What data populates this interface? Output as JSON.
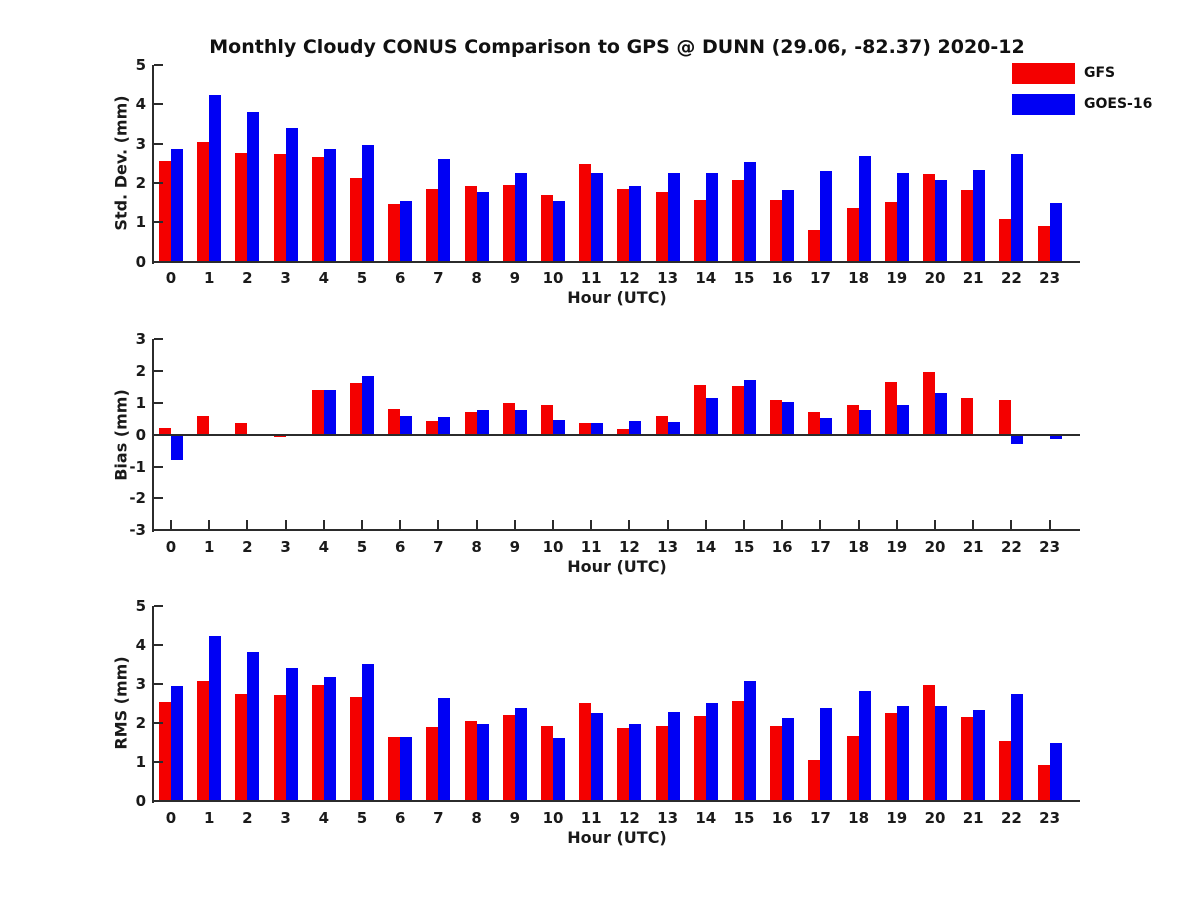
{
  "title": "Monthly Cloudy CONUS Comparison to GPS @ DUNN (29.06, -82.37) 2020-12",
  "legend": {
    "entries": [
      {
        "label": "GFS",
        "color": "#f40000"
      },
      {
        "label": "GOES-16",
        "color": "#0000f4"
      }
    ]
  },
  "colors": {
    "gfs": "#f40000",
    "goes16": "#0000f4",
    "axis": "#2b2b2b",
    "text": "#1a1a1a"
  },
  "chart_data": [
    {
      "type": "bar",
      "ylabel": "Std. Dev. (mm)",
      "xlabel": "Hour (UTC)",
      "ylim": [
        0,
        5
      ],
      "yticks": [
        0,
        1,
        2,
        3,
        4,
        5
      ],
      "grid": false,
      "legend_position": "upper-right-outside",
      "categories": [
        "0",
        "1",
        "2",
        "3",
        "4",
        "5",
        "6",
        "7",
        "8",
        "9",
        "10",
        "11",
        "12",
        "13",
        "14",
        "15",
        "16",
        "17",
        "18",
        "19",
        "20",
        "21",
        "22",
        "23"
      ],
      "series": [
        {
          "name": "GFS",
          "color": "#f40000",
          "values": [
            2.55,
            3.05,
            2.75,
            2.74,
            2.66,
            2.13,
            1.47,
            1.85,
            1.92,
            1.95,
            1.68,
            2.47,
            1.85,
            1.78,
            1.56,
            2.07,
            1.56,
            0.8,
            1.35,
            1.51,
            2.22,
            1.82,
            1.08,
            0.9
          ]
        },
        {
          "name": "GOES-16",
          "color": "#0000f4",
          "values": [
            2.87,
            4.23,
            3.8,
            3.4,
            2.87,
            2.96,
            1.53,
            2.6,
            1.78,
            2.26,
            1.55,
            2.24,
            1.93,
            2.25,
            2.26,
            2.53,
            1.82,
            2.3,
            2.68,
            2.25,
            2.07,
            2.33,
            2.74,
            1.48
          ]
        }
      ]
    },
    {
      "type": "bar",
      "ylabel": "Bias (mm)",
      "xlabel": "Hour (UTC)",
      "ylim": [
        -3,
        3
      ],
      "yticks": [
        -3,
        -2,
        -1,
        0,
        1,
        2,
        3
      ],
      "grid": false,
      "categories": [
        "0",
        "1",
        "2",
        "3",
        "4",
        "5",
        "6",
        "7",
        "8",
        "9",
        "10",
        "11",
        "12",
        "13",
        "14",
        "15",
        "16",
        "17",
        "18",
        "19",
        "20",
        "21",
        "22",
        "23"
      ],
      "series": [
        {
          "name": "GFS",
          "color": "#f40000",
          "values": [
            0.2,
            0.6,
            0.38,
            -0.08,
            1.4,
            1.62,
            0.82,
            0.44,
            0.72,
            0.99,
            0.94,
            0.35,
            0.19,
            0.6,
            1.55,
            1.52,
            1.1,
            0.72,
            0.93,
            1.66,
            1.95,
            1.15,
            1.1,
            0.0
          ]
        },
        {
          "name": "GOES-16",
          "color": "#0000f4",
          "values": [
            -0.78,
            -0.05,
            -0.05,
            -0.05,
            1.4,
            1.85,
            0.6,
            0.56,
            0.77,
            0.77,
            0.46,
            0.35,
            0.44,
            0.4,
            1.15,
            1.7,
            1.02,
            0.53,
            0.78,
            0.93,
            1.3,
            -0.04,
            -0.3,
            -0.13
          ]
        }
      ]
    },
    {
      "type": "bar",
      "ylabel": "RMS (mm)",
      "xlabel": "Hour (UTC)",
      "ylim": [
        0,
        5
      ],
      "yticks": [
        0,
        1,
        2,
        3,
        4,
        5
      ],
      "grid": false,
      "categories": [
        "0",
        "1",
        "2",
        "3",
        "4",
        "5",
        "6",
        "7",
        "8",
        "9",
        "10",
        "11",
        "12",
        "13",
        "14",
        "15",
        "16",
        "17",
        "18",
        "19",
        "20",
        "21",
        "22",
        "23"
      ],
      "series": [
        {
          "name": "GFS",
          "color": "#f40000",
          "values": [
            2.53,
            3.08,
            2.74,
            2.72,
            2.96,
            2.66,
            1.64,
            1.9,
            2.05,
            2.2,
            1.92,
            2.5,
            1.87,
            1.92,
            2.18,
            2.57,
            1.93,
            1.04,
            1.66,
            2.26,
            2.96,
            2.16,
            1.54,
            0.91
          ]
        },
        {
          "name": "GOES-16",
          "color": "#0000f4",
          "values": [
            2.94,
            4.23,
            3.81,
            3.4,
            3.18,
            3.5,
            1.64,
            2.64,
            1.96,
            2.39,
            1.62,
            2.26,
            1.96,
            2.29,
            2.52,
            3.07,
            2.12,
            2.37,
            2.81,
            2.44,
            2.42,
            2.32,
            2.75,
            1.49
          ]
        }
      ]
    }
  ]
}
